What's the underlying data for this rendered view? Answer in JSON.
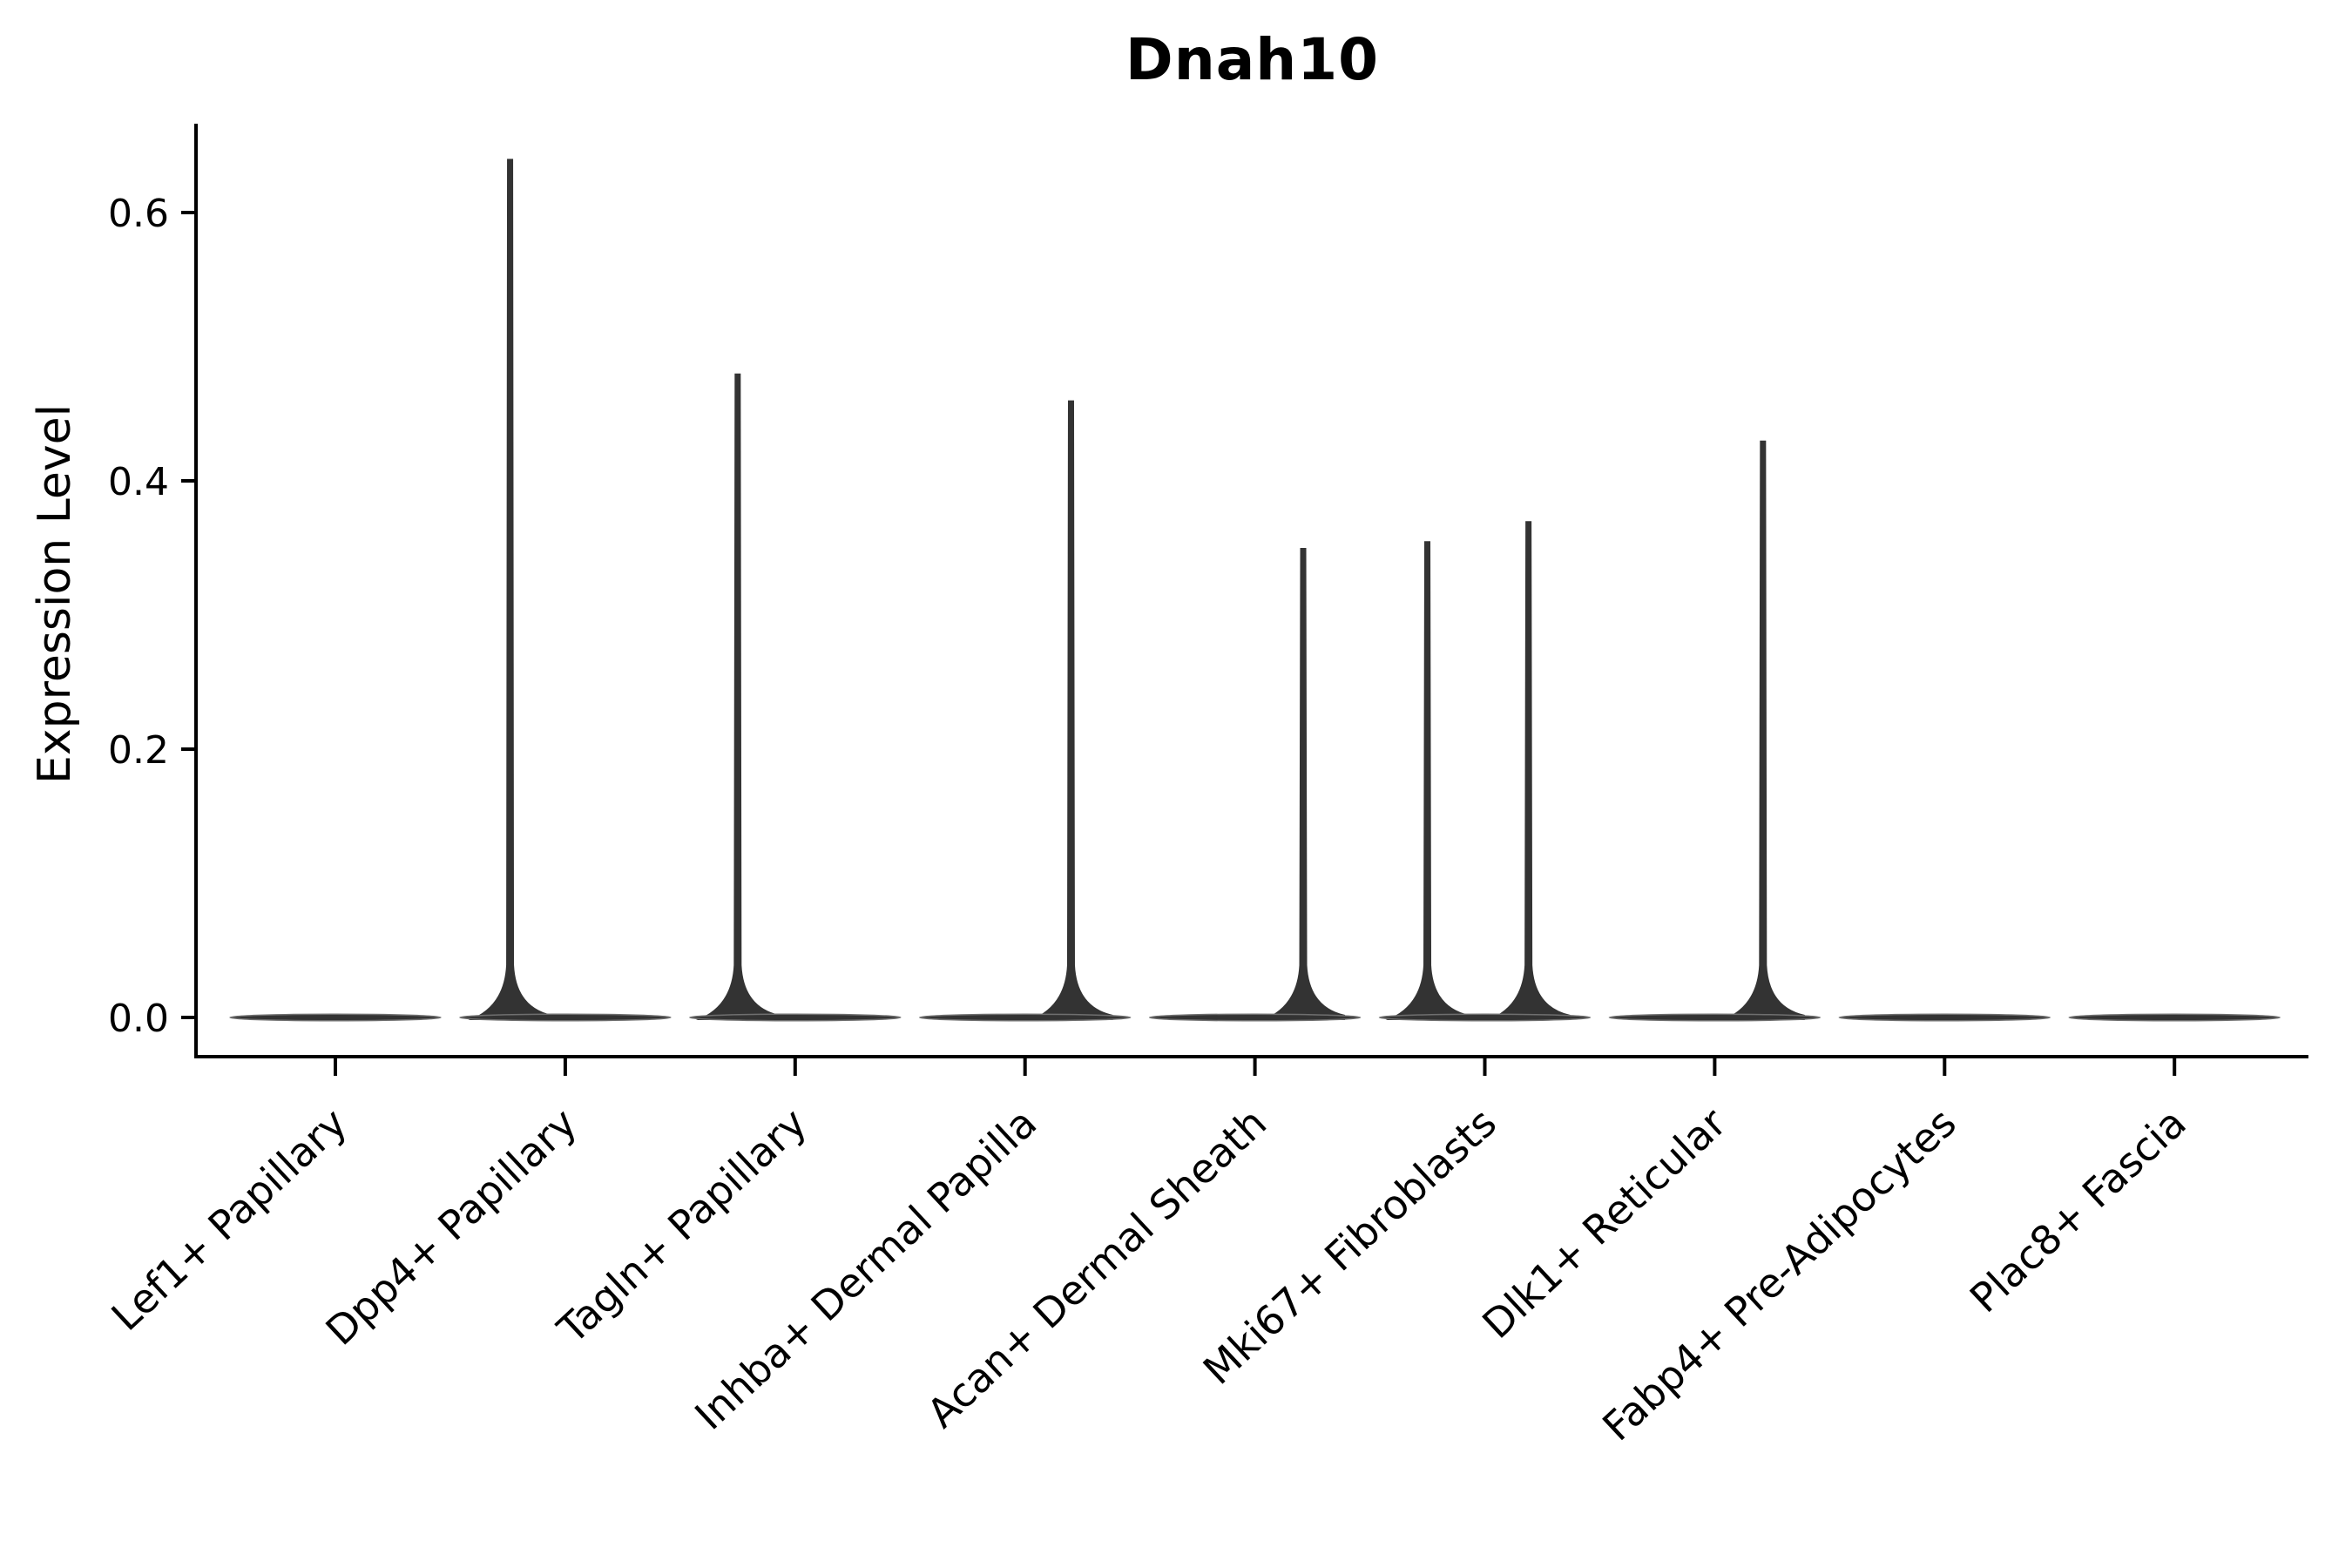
{
  "chart_data": {
    "type": "violin",
    "title": "Dnah10",
    "xlabel": "",
    "ylabel": "Expression Level",
    "ytick_labels": [
      "0.0",
      "0.2",
      "0.4",
      "0.6"
    ],
    "ytick_values": [
      0.0,
      0.2,
      0.4,
      0.6
    ],
    "ylim": [
      -0.029,
      0.669
    ],
    "grid": false,
    "legend": "none",
    "x_label_rotation_deg": 43,
    "categories": [
      "Lef1+ Papillary",
      "Dpp4+ Papillary",
      "Tagln+ Papillary",
      "Inhba+ Dermal Papilla",
      "Acan+ Dermal Sheath",
      "Mki67+ Fibroblasts",
      "Dlk1+ Reticular",
      "Fabp4+ Pre-Adipocytes",
      "Plac8+ Fascia"
    ],
    "violins": [
      {
        "category": "Lef1+ Papillary",
        "body_value": 0.0,
        "spikes": []
      },
      {
        "category": "Dpp4+ Papillary",
        "body_value": 0.0,
        "spikes": [
          {
            "x_offset": -0.24,
            "peak": 0.64
          }
        ]
      },
      {
        "category": "Tagln+ Papillary",
        "body_value": 0.0,
        "spikes": [
          {
            "x_offset": -0.25,
            "peak": 0.48
          }
        ]
      },
      {
        "category": "Inhba+ Dermal Papilla",
        "body_value": 0.0,
        "spikes": [
          {
            "x_offset": 0.2,
            "peak": 0.46
          }
        ]
      },
      {
        "category": "Acan+ Dermal Sheath",
        "body_value": 0.0,
        "spikes": [
          {
            "x_offset": 0.21,
            "peak": 0.35
          }
        ]
      },
      {
        "category": "Mki67+ Fibroblasts",
        "body_value": 0.0,
        "spikes": [
          {
            "x_offset": -0.25,
            "peak": 0.355
          },
          {
            "x_offset": 0.19,
            "peak": 0.37
          }
        ]
      },
      {
        "category": "Dlk1+ Reticular",
        "body_value": 0.0,
        "spikes": [
          {
            "x_offset": 0.21,
            "peak": 0.43
          }
        ]
      },
      {
        "category": "Fabp4+ Pre-Adipocytes",
        "body_value": 0.0,
        "spikes": []
      },
      {
        "category": "Plac8+ Fascia",
        "body_value": 0.0,
        "spikes": []
      }
    ],
    "colors": {
      "violin_fill": "#333333",
      "violin_edge": "#6f6f6f",
      "spike": "#333333",
      "axis": "#000000",
      "text": "#000000",
      "background": "#ffffff"
    }
  }
}
